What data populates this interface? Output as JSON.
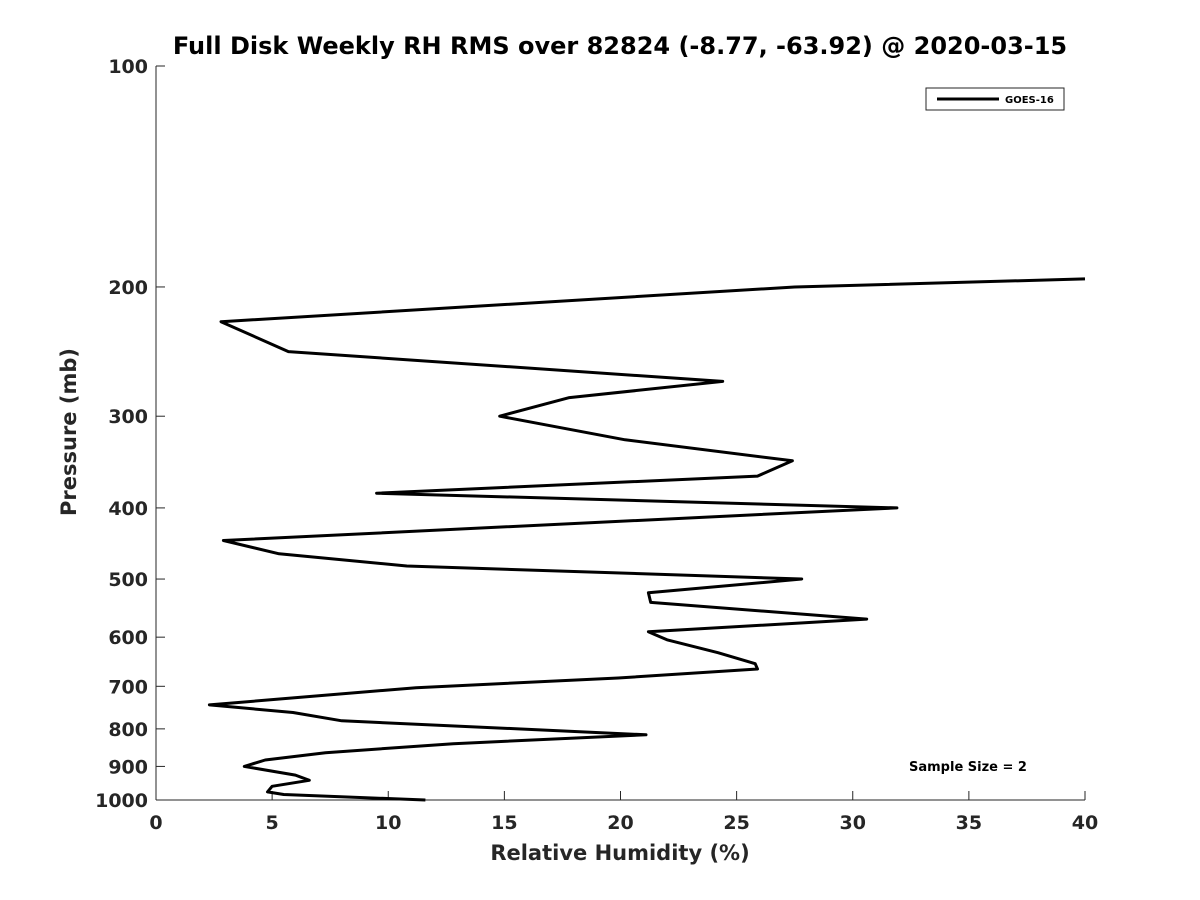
{
  "chart_data": {
    "type": "line",
    "title": "Full Disk Weekly RH RMS over 82824 (-8.77, -63.92) @ 2020-03-15",
    "xlabel": "Relative Humidity (%)",
    "ylabel": "Pressure (mb)",
    "xlim": [
      0,
      40
    ],
    "ylim": [
      100,
      1000
    ],
    "y_scale": "log",
    "y_reversed": true,
    "x_ticks": [
      0,
      5,
      10,
      15,
      20,
      25,
      30,
      35,
      40
    ],
    "y_ticks": [
      100,
      200,
      300,
      400,
      500,
      600,
      700,
      800,
      900,
      1000
    ],
    "grid": false,
    "legend": {
      "position": "top-right",
      "entries": [
        "GOES-16"
      ]
    },
    "annotations": [
      {
        "text": "Sample Size = 2",
        "position": "bottom-right"
      }
    ],
    "series": [
      {
        "name": "GOES-16",
        "color": "#000000",
        "points": [
          [
            40.0,
            195
          ],
          [
            27.5,
            200
          ],
          [
            2.8,
            223
          ],
          [
            5.7,
            245
          ],
          [
            24.4,
            269
          ],
          [
            17.8,
            283
          ],
          [
            14.8,
            300
          ],
          [
            20.2,
            323
          ],
          [
            27.4,
            345
          ],
          [
            25.9,
            362
          ],
          [
            9.5,
            382
          ],
          [
            31.9,
            400
          ],
          [
            2.9,
            443
          ],
          [
            5.3,
            462
          ],
          [
            10.8,
            480
          ],
          [
            27.8,
            500
          ],
          [
            21.2,
            522
          ],
          [
            21.3,
            538
          ],
          [
            30.6,
            567
          ],
          [
            21.2,
            590
          ],
          [
            22.0,
            605
          ],
          [
            24.2,
            630
          ],
          [
            25.8,
            652
          ],
          [
            25.9,
            663
          ],
          [
            19.9,
            682
          ],
          [
            11.2,
            703
          ],
          [
            6.1,
            725
          ],
          [
            2.3,
            742
          ],
          [
            5.9,
            760
          ],
          [
            8.0,
            780
          ],
          [
            15.6,
            800
          ],
          [
            21.1,
            815
          ],
          [
            12.8,
            838
          ],
          [
            7.3,
            862
          ],
          [
            4.7,
            882
          ],
          [
            3.8,
            900
          ],
          [
            6.0,
            925
          ],
          [
            6.6,
            940
          ],
          [
            5.0,
            958
          ],
          [
            4.8,
            975
          ],
          [
            5.5,
            983
          ],
          [
            11.6,
            1000
          ]
        ]
      }
    ]
  }
}
